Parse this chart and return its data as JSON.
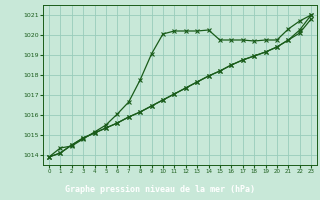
{
  "background_color": "#c8e8d8",
  "plot_bg_color": "#c8e8d8",
  "grid_color": "#99ccbb",
  "line_color": "#1a5c1a",
  "marker_color": "#1a5c1a",
  "xlabel": "Graphe pression niveau de la mer (hPa)",
  "xlabel_bg": "#2a6b2a",
  "xlabel_fg": "#ffffff",
  "ylim": [
    1013.5,
    1021.5
  ],
  "xlim": [
    -0.5,
    23.5
  ],
  "yticks": [
    1014,
    1015,
    1016,
    1017,
    1018,
    1019,
    1020,
    1021
  ],
  "xticks": [
    0,
    1,
    2,
    3,
    4,
    5,
    6,
    7,
    8,
    9,
    10,
    11,
    12,
    13,
    14,
    15,
    16,
    17,
    18,
    19,
    20,
    21,
    22,
    23
  ],
  "line1_x": [
    0,
    1,
    2,
    3,
    4,
    5,
    6,
    7,
    8,
    9,
    10,
    11,
    12,
    13,
    14,
    15,
    16,
    17,
    18,
    19,
    20,
    21,
    22,
    23
  ],
  "line1_y": [
    1013.9,
    1014.35,
    1014.45,
    1014.8,
    1015.15,
    1015.5,
    1016.05,
    1016.65,
    1017.75,
    1019.05,
    1020.05,
    1020.2,
    1020.2,
    1020.2,
    1020.25,
    1019.75,
    1019.75,
    1019.75,
    1019.7,
    1019.75,
    1019.75,
    1020.3,
    1020.7,
    1021.0
  ],
  "line2_x": [
    0,
    1,
    2,
    3,
    4,
    5,
    6,
    7,
    8,
    9,
    10,
    11,
    12,
    13,
    14,
    15,
    16,
    17,
    18,
    19,
    20,
    21,
    22,
    23
  ],
  "line2_y": [
    1013.9,
    1014.1,
    1014.5,
    1014.85,
    1015.1,
    1015.35,
    1015.6,
    1015.9,
    1016.15,
    1016.45,
    1016.75,
    1017.05,
    1017.35,
    1017.65,
    1017.95,
    1018.2,
    1018.5,
    1018.75,
    1018.95,
    1019.15,
    1019.4,
    1019.75,
    1020.1,
    1020.8
  ],
  "line3_x": [
    0,
    1,
    2,
    3,
    4,
    5,
    6,
    7,
    8,
    9,
    10,
    11,
    12,
    13,
    14,
    15,
    16,
    17,
    18,
    19,
    20,
    21,
    22,
    23
  ],
  "line3_y": [
    1013.9,
    1014.1,
    1014.5,
    1014.85,
    1015.1,
    1015.35,
    1015.6,
    1015.9,
    1016.15,
    1016.45,
    1016.75,
    1017.05,
    1017.35,
    1017.65,
    1017.95,
    1018.2,
    1018.5,
    1018.75,
    1018.95,
    1019.15,
    1019.4,
    1019.75,
    1020.25,
    1021.0
  ]
}
